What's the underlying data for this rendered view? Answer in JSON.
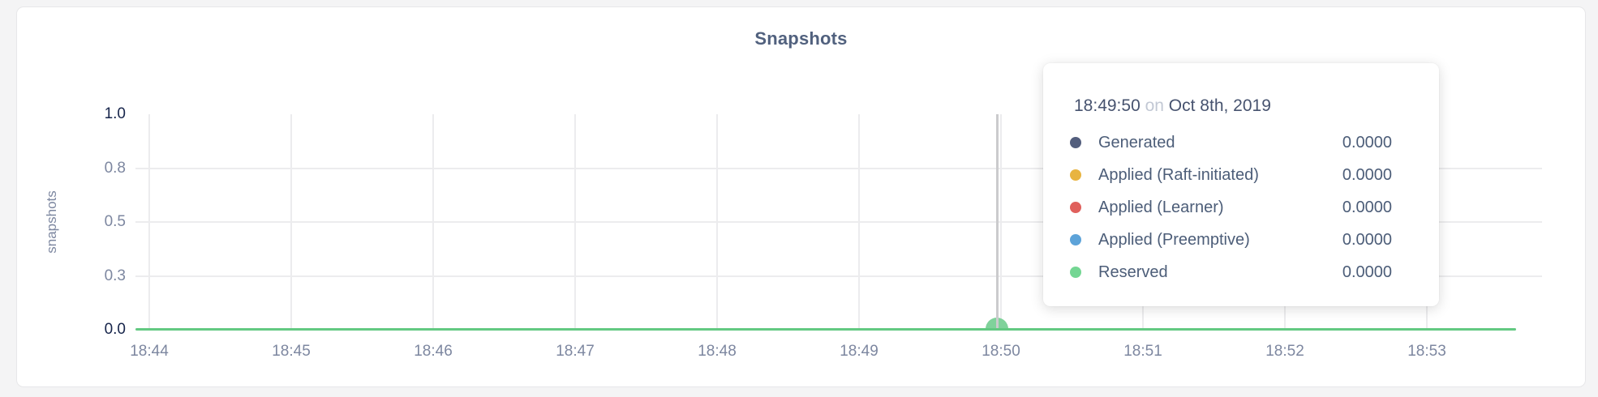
{
  "chart": {
    "title": "Snapshots",
    "ylabel": "snapshots",
    "y_ticks": [
      "1.0",
      "0.8",
      "0.5",
      "0.3",
      "0.0"
    ],
    "x_ticks": [
      "18:44",
      "18:45",
      "18:46",
      "18:47",
      "18:48",
      "18:49",
      "18:50",
      "18:51",
      "18:52",
      "18:53"
    ],
    "line_color": "#63c982",
    "hover_dot_color": "#80d29b"
  },
  "tooltip": {
    "time": "18:49:50",
    "connector": "on",
    "date": "Oct 8th, 2019",
    "rows": [
      {
        "label": "Generated",
        "color": "#535e7d",
        "value": "0.0000"
      },
      {
        "label": "Applied (Raft-initiated)",
        "color": "#e8b440",
        "value": "0.0000"
      },
      {
        "label": "Applied (Learner)",
        "color": "#e0605c",
        "value": "0.0000"
      },
      {
        "label": "Applied (Preemptive)",
        "color": "#5da3d9",
        "value": "0.0000"
      },
      {
        "label": "Reserved",
        "color": "#74d693",
        "value": "0.0000"
      }
    ]
  },
  "chart_data": {
    "type": "line",
    "title": "Snapshots",
    "xlabel": "",
    "ylabel": "snapshots",
    "x": [
      "18:44",
      "18:45",
      "18:46",
      "18:47",
      "18:48",
      "18:49",
      "18:50",
      "18:51",
      "18:52",
      "18:53"
    ],
    "series": [
      {
        "name": "Generated",
        "color": "#535e7d",
        "values": [
          0,
          0,
          0,
          0,
          0,
          0,
          0,
          0,
          0,
          0
        ]
      },
      {
        "name": "Applied (Raft-initiated)",
        "color": "#e8b440",
        "values": [
          0,
          0,
          0,
          0,
          0,
          0,
          0,
          0,
          0,
          0
        ]
      },
      {
        "name": "Applied (Learner)",
        "color": "#e0605c",
        "values": [
          0,
          0,
          0,
          0,
          0,
          0,
          0,
          0,
          0,
          0
        ]
      },
      {
        "name": "Applied (Preemptive)",
        "color": "#5da3d9",
        "values": [
          0,
          0,
          0,
          0,
          0,
          0,
          0,
          0,
          0,
          0
        ]
      },
      {
        "name": "Reserved",
        "color": "#74d693",
        "values": [
          0,
          0,
          0,
          0,
          0,
          0,
          0,
          0,
          0,
          0
        ]
      }
    ],
    "ylim": [
      0.0,
      1.0
    ],
    "y_tick_labels": [
      "0.0",
      "0.3",
      "0.5",
      "0.8",
      "1.0"
    ],
    "grid": true,
    "legend_position": "tooltip-only",
    "hover": {
      "time": "18:49:50",
      "date": "Oct 8th, 2019",
      "all_values": "0.0000"
    }
  }
}
